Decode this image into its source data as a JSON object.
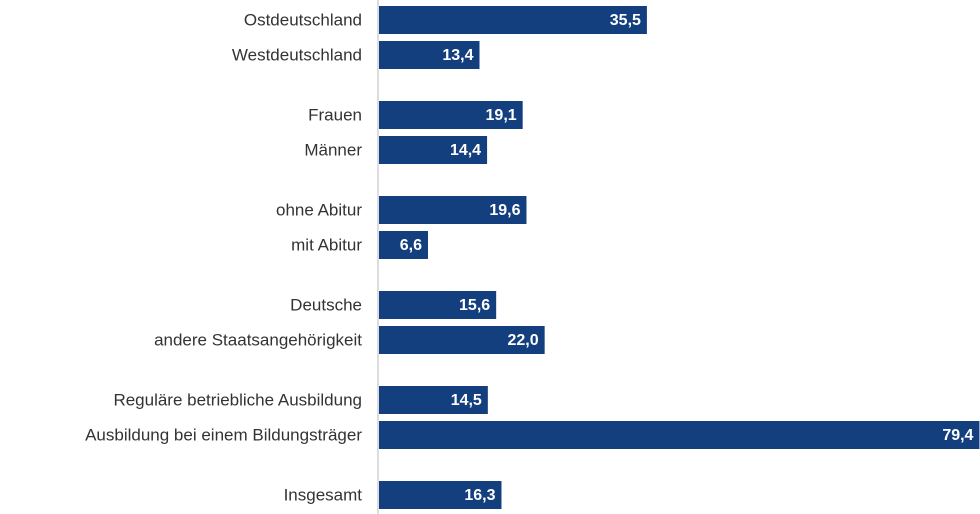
{
  "chart_data": {
    "type": "bar",
    "orientation": "horizontal",
    "color": "#143f7f",
    "xlim": [
      0,
      80
    ],
    "groups": [
      {
        "categories": [
          "Ostdeutschland",
          "Westdeutschland"
        ],
        "values": [
          35.5,
          13.4
        ],
        "value_labels": [
          "35,5",
          "13,4"
        ]
      },
      {
        "categories": [
          "Frauen",
          "Männer"
        ],
        "values": [
          19.1,
          14.4
        ],
        "value_labels": [
          "19,1",
          "14,4"
        ]
      },
      {
        "categories": [
          "ohne Abitur",
          "mit Abitur"
        ],
        "values": [
          19.6,
          6.6
        ],
        "value_labels": [
          "19,6",
          "6,6"
        ]
      },
      {
        "categories": [
          "Deutsche",
          "andere Staatsangehörigkeit"
        ],
        "values": [
          15.6,
          22.0
        ],
        "value_labels": [
          "15,6",
          "22,0"
        ]
      },
      {
        "categories": [
          "Reguläre betriebliche Ausbildung",
          "Ausbildung bei einem Bildungsträger"
        ],
        "values": [
          14.5,
          79.4
        ],
        "value_labels": [
          "14,5",
          "79,4"
        ]
      },
      {
        "categories": [
          "Insgesamt"
        ],
        "values": [
          16.3
        ],
        "value_labels": [
          "16,3"
        ]
      }
    ]
  }
}
